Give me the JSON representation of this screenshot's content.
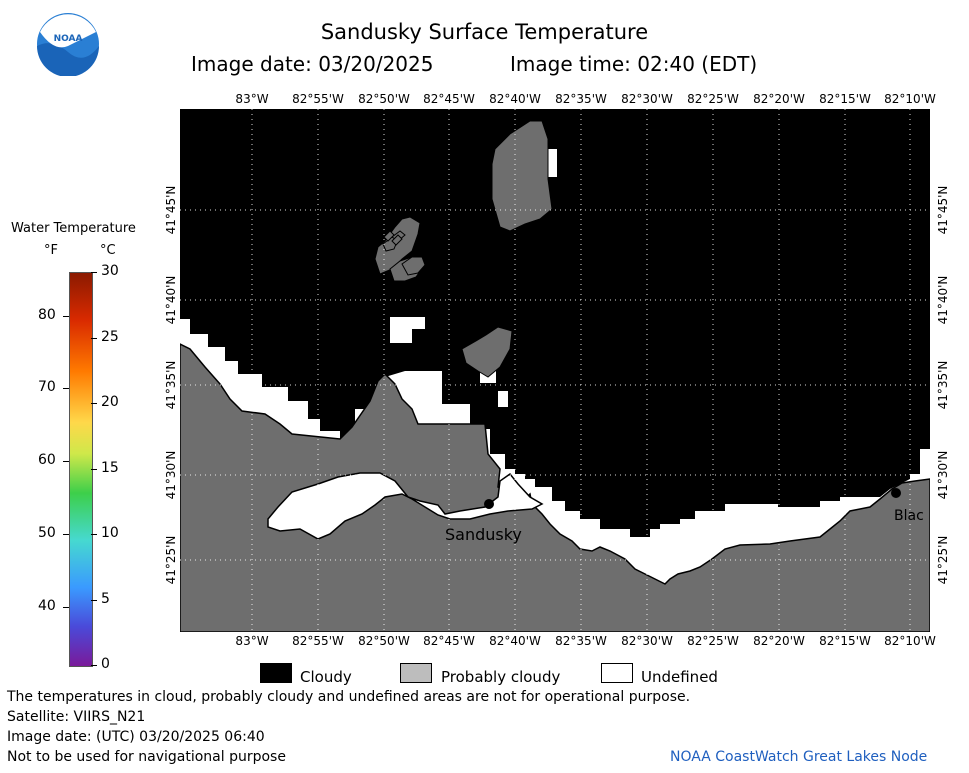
{
  "logo": {
    "text": "NOAA",
    "icon": "noaa-logo-icon"
  },
  "header": {
    "title": "Sandusky Surface Temperature",
    "image_date": "Image date: 03/20/2025",
    "image_time": "Image time: 02:40 (EDT)"
  },
  "longitudes": [
    "83°W",
    "82°55'W",
    "82°50'W",
    "82°45'W",
    "82°40'W",
    "82°35'W",
    "82°30'W",
    "82°25'W",
    "82°20'W",
    "82°15'W",
    "82°10'W"
  ],
  "latitudes": [
    "41°45'N",
    "41°40'N",
    "41°35'N",
    "41°30'N",
    "41°25'N"
  ],
  "places": [
    {
      "name": "Sandusky"
    },
    {
      "name": "Blac"
    }
  ],
  "colorbar": {
    "title": "Water Temperature",
    "unit_f": "°F",
    "unit_c": "°C",
    "f_ticks": [
      {
        "label": "80",
        "value": 80
      },
      {
        "label": "70",
        "value": 70
      },
      {
        "label": "60",
        "value": 60
      },
      {
        "label": "50",
        "value": 50
      },
      {
        "label": "40",
        "value": 40
      }
    ],
    "c_ticks": [
      {
        "label": "30",
        "value": 30
      },
      {
        "label": "25",
        "value": 25
      },
      {
        "label": "20",
        "value": 20
      },
      {
        "label": "15",
        "value": 15
      },
      {
        "label": "10",
        "value": 10
      },
      {
        "label": "5",
        "value": 5
      },
      {
        "label": "0",
        "value": 0
      }
    ]
  },
  "legend": {
    "cloudy": "Cloudy",
    "probably_cloudy": "Probably cloudy",
    "undefined": "Undefined",
    "colors": {
      "cloudy": "#000000",
      "probably_cloudy": "#bdbdbd",
      "undefined": "#ffffff"
    }
  },
  "colors": {
    "land": "#6e6e6e",
    "cloud": "#000000",
    "undefined": "#ffffff",
    "credit": "#1f5fbf"
  },
  "footer": {
    "disclaimer": "The temperatures in cloud, probably cloudy and undefined areas are not for operational purpose.",
    "satellite": "Satellite: VIIRS_N21",
    "utc_date": "Image date: (UTC) 03/20/2025   06:40",
    "navigation": "Not to be used for navigational purpose",
    "credit": "NOAA CoastWatch Great Lakes Node"
  }
}
